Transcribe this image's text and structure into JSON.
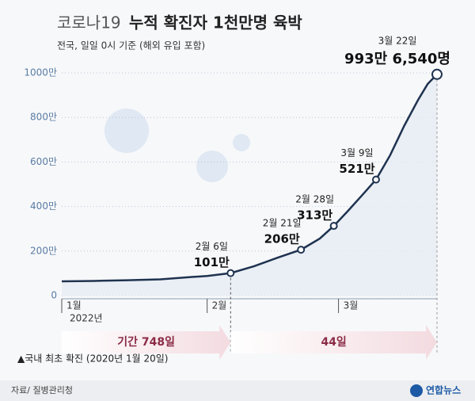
{
  "chart_data": {
    "type": "line",
    "title_light": "코로나19",
    "title": "누적 확진자 1천만명 육박",
    "subtitle": "전국, 일일 0시 기준 (해외 유입 포함)",
    "x": [
      1,
      8,
      15,
      22,
      29,
      32,
      37,
      42,
      47,
      52,
      56,
      59,
      62,
      65,
      68,
      71,
      74,
      77,
      79,
      81
    ],
    "values": [
      64,
      66,
      69,
      73,
      84,
      88,
      101,
      132,
      170,
      206,
      256,
      313,
      380,
      450,
      521,
      630,
      762,
      880,
      950,
      993.654
    ],
    "color": "#1f3350",
    "xlim": [
      1,
      81
    ],
    "xticks": [
      {
        "value": 1,
        "label": "1월"
      },
      {
        "value": 32,
        "label": "2월"
      },
      {
        "value": 60,
        "label": "3월"
      }
    ],
    "year_label": "2022년",
    "ylim": [
      0,
      1000
    ],
    "yticks": [
      0,
      {
        "value": 200,
        "label": "200만"
      },
      {
        "value": 400,
        "label": "400만"
      },
      {
        "value": 600,
        "label": "600만"
      },
      {
        "value": 800,
        "label": "800만"
      },
      {
        "value": 1000,
        "label": "1000만"
      }
    ],
    "grid": true,
    "annotations": [
      {
        "x": 37,
        "value": 101,
        "date": "2월 6일",
        "label": "101만"
      },
      {
        "x": 52,
        "value": 206,
        "date": "2월 21일",
        "label": "206만"
      },
      {
        "x": 59,
        "value": 313,
        "date": "2월 28일",
        "label": "313만"
      },
      {
        "x": 68,
        "value": 521,
        "date": "3월 9일",
        "label": "521만"
      },
      {
        "x": 81,
        "value": 993.654,
        "date": "3월 22일",
        "label": "993만 6,540명"
      }
    ],
    "periods": [
      "기간 748일",
      "44일"
    ],
    "footnote": "▲국내 최초 확진 (2020년 1월 20일)",
    "source": "자료/ 질병관리청",
    "logo": "연합뉴스"
  }
}
